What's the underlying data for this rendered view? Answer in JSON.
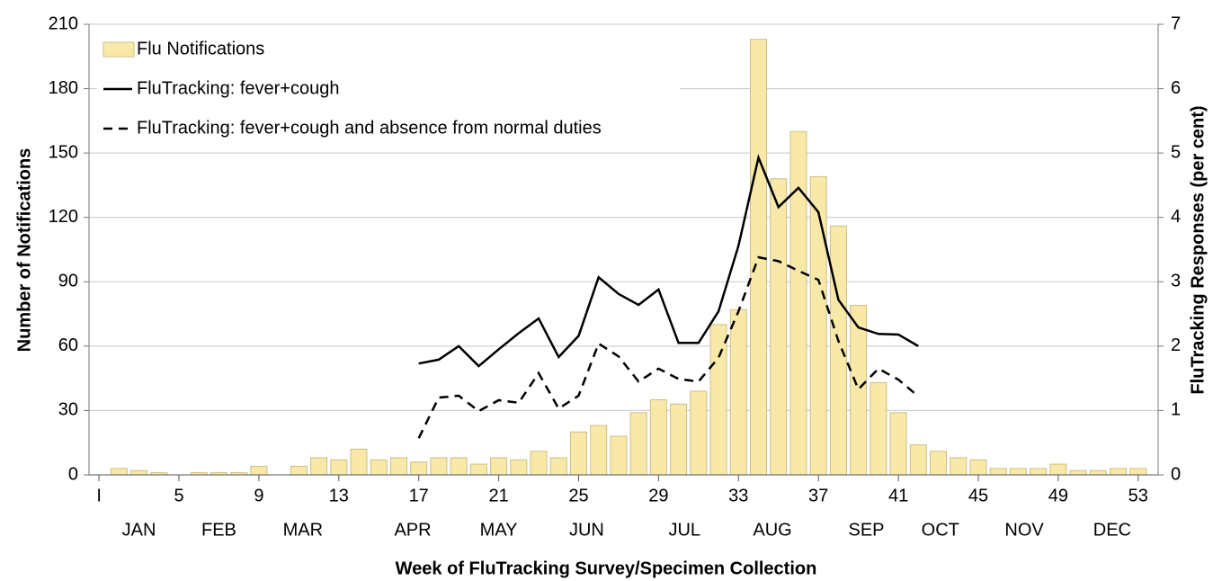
{
  "chart_data": {
    "type": "bar",
    "x_label": "Week of FluTracking Survey/Specimen Collection",
    "y_label": "Number of Notifications",
    "y2_label": "FluTracking Responses (per cent)",
    "x": [
      1,
      2,
      3,
      4,
      5,
      6,
      7,
      8,
      9,
      10,
      11,
      12,
      13,
      14,
      15,
      16,
      17,
      18,
      19,
      20,
      21,
      22,
      23,
      24,
      25,
      26,
      27,
      28,
      29,
      30,
      31,
      32,
      33,
      34,
      35,
      36,
      37,
      38,
      39,
      40,
      41,
      42,
      43,
      44,
      45,
      46,
      47,
      48,
      49,
      50,
      51,
      52,
      53
    ],
    "series": [
      {
        "name": "Flu Notifications",
        "type": "bar",
        "color": "#f9e9a9",
        "values": [
          0,
          3,
          2,
          1,
          0,
          1,
          1,
          1,
          4,
          0,
          4,
          8,
          7,
          12,
          7,
          8,
          6,
          8,
          8,
          5,
          8,
          7,
          11,
          8,
          20,
          23,
          18,
          29,
          35,
          33,
          39,
          70,
          77,
          203,
          138,
          160,
          139,
          116,
          79,
          43,
          29,
          14,
          11,
          8,
          7,
          3,
          3,
          3,
          5,
          2,
          2,
          3,
          3
        ]
      },
      {
        "name": "FluTracking: fever+cough",
        "type": "line",
        "axis": "y2",
        "color": "#000000",
        "dashed": false,
        "values": [
          null,
          null,
          null,
          null,
          null,
          null,
          null,
          null,
          null,
          null,
          null,
          null,
          null,
          null,
          null,
          null,
          1.73,
          1.79,
          2.0,
          1.69,
          1.95,
          2.2,
          2.43,
          1.83,
          2.16,
          3.07,
          2.81,
          2.64,
          2.88,
          2.05,
          2.05,
          2.54,
          3.56,
          4.93,
          4.16,
          4.46,
          4.08,
          2.72,
          2.29,
          2.19,
          2.18,
          2.0,
          null,
          null,
          null,
          null,
          null,
          null,
          null,
          null,
          null,
          null,
          null
        ]
      },
      {
        "name": "FluTracking: fever+cough and absence from normal duties",
        "type": "line",
        "axis": "y2",
        "color": "#000000",
        "dashed": true,
        "values": [
          null,
          null,
          null,
          null,
          null,
          null,
          null,
          null,
          null,
          null,
          null,
          null,
          null,
          null,
          null,
          null,
          0.57,
          1.2,
          1.23,
          0.99,
          1.16,
          1.12,
          1.58,
          1.03,
          1.23,
          2.04,
          1.84,
          1.45,
          1.65,
          1.49,
          1.45,
          1.82,
          2.54,
          3.38,
          3.32,
          3.17,
          3.03,
          2.08,
          1.33,
          1.65,
          1.48,
          1.22,
          null,
          null,
          null,
          null,
          null,
          null,
          null,
          null,
          null,
          null,
          null
        ]
      }
    ],
    "month_labels": [
      {
        "label": "JAN",
        "week": 3
      },
      {
        "label": "FEB",
        "week": 7
      },
      {
        "label": "MAR",
        "week": 11.2
      },
      {
        "label": "APR",
        "week": 16.7
      },
      {
        "label": "MAY",
        "week": 21
      },
      {
        "label": "JUN",
        "week": 25.4
      },
      {
        "label": "JUL",
        "week": 30.3
      },
      {
        "label": "AUG",
        "week": 34.7
      },
      {
        "label": "SEP",
        "week": 39.4
      },
      {
        "label": "OCT",
        "week": 43.1
      },
      {
        "label": "NOV",
        "week": 47.3
      },
      {
        "label": "DEC",
        "week": 51.7
      }
    ],
    "xlim": [
      0.5,
      54
    ],
    "xticks": [
      {
        "value": 1,
        "label": "I"
      },
      5,
      9,
      13,
      17,
      21,
      25,
      29,
      33,
      37,
      41,
      45,
      49,
      53
    ],
    "ylim": [
      0,
      210
    ],
    "yticks": [
      0,
      30,
      60,
      90,
      120,
      150,
      180,
      210
    ],
    "y2lim": [
      0,
      7
    ],
    "y2ticks": [
      0,
      1,
      2,
      3,
      4,
      5,
      6,
      7
    ],
    "grid": true,
    "legend": "upper left"
  }
}
